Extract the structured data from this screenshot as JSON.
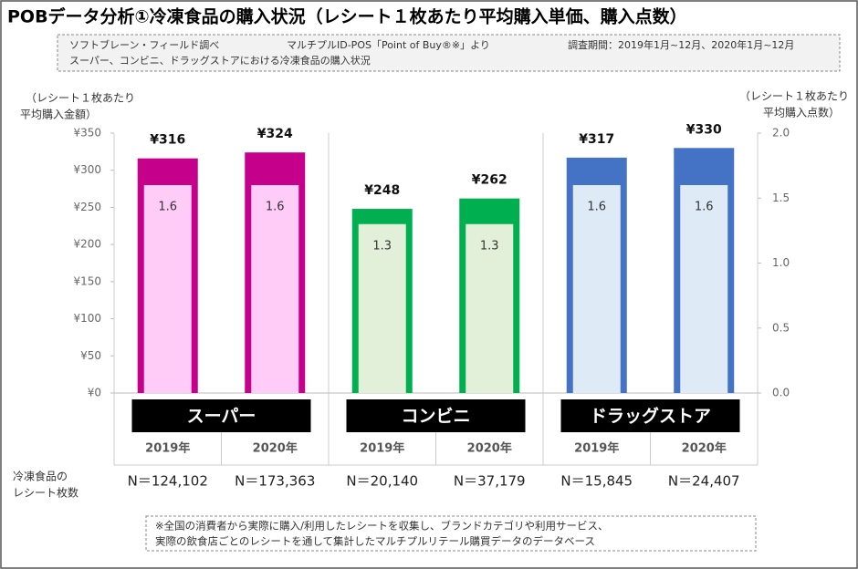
{
  "chart_data": {
    "type": "bar",
    "title": "POBデータ分析①冷凍食品の購入状況（レシート１枚あたり平均購入単価、購入点数）",
    "source": [
      "ソフトブレーン・フィールド調べ",
      "マルチプルID-POS「Point of Buy®※」より",
      "調査期間：2019年1月~12月、2020年1月~12月",
      "スーパー、コンビニ、ドラッグストアにおける冷凍食品の購入状況"
    ],
    "ylabel": [
      "（レシート１枚あたり",
      "平均購入金額）"
    ],
    "y2label": [
      "（レシート１枚あたり",
      "平均購入点数）"
    ],
    "groups": [
      "スーパー",
      "コンビニ",
      "ドラッグストア"
    ],
    "categories": [
      "2019年",
      "2020年",
      "2019年",
      "2020年",
      "2019年",
      "2020年"
    ],
    "series": [
      {
        "values": [
          316,
          324,
          248,
          262,
          317,
          330
        ],
        "value_labels": [
          "¥316",
          "¥324",
          "¥248",
          "¥262",
          "¥317",
          "¥330"
        ],
        "colors": [
          "#c5008a",
          "#c5008a",
          "#00b050",
          "#00b050",
          "#4472c4",
          "#4472c4"
        ]
      },
      {
        "axis": "y2",
        "values": [
          1.6,
          1.6,
          1.3,
          1.3,
          1.6,
          1.6
        ],
        "colors": [
          "#ffccf7",
          "#ffccf7",
          "#e2f0d9",
          "#e2f0d9",
          "#deebf7",
          "#deebf7"
        ]
      }
    ],
    "ylim": [
      0,
      350
    ],
    "yticks": [
      {
        "value": 0,
        "label": "¥0"
      },
      {
        "value": 50,
        "label": "¥50"
      },
      {
        "value": 100,
        "label": "¥100"
      },
      {
        "value": 150,
        "label": "¥150"
      },
      {
        "value": 200,
        "label": "¥200"
      },
      {
        "value": 250,
        "label": "¥250"
      },
      {
        "value": 300,
        "label": "¥300"
      },
      {
        "value": 350,
        "label": "¥350"
      }
    ],
    "y2lim": [
      0,
      2
    ],
    "y2ticks": [
      {
        "value": 0,
        "label": "0.0"
      },
      {
        "value": 0.5,
        "label": "0.5"
      },
      {
        "value": 1,
        "label": "1.0"
      },
      {
        "value": 1.5,
        "label": "1.5"
      },
      {
        "value": 2,
        "label": "2.0"
      }
    ],
    "count_title": [
      "冷凍食品の",
      "レシート枚数"
    ],
    "count_labels": [
      "N＝124,102",
      "N＝173,363",
      "N＝20,140",
      "N＝37,179",
      "N＝15,845",
      "N＝24,407"
    ],
    "note": [
      "※全国の消費者から実際に購入/利用したレシートを収集し、ブランドカテゴリや利用サービス、",
      "実際の飲食店ごとのレシートを通して集計したマルチプルリテール購買データのデータベース"
    ]
  }
}
